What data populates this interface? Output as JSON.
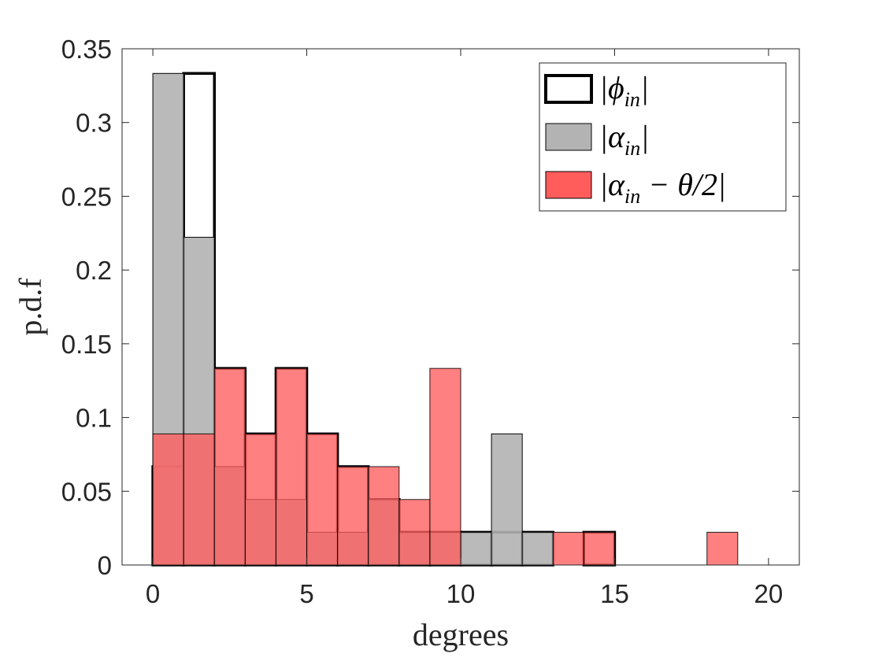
{
  "chart_data": {
    "type": "bar",
    "subtype": "histogram",
    "title": "",
    "xlabel": "degrees",
    "ylabel": "p.d.f",
    "xlim": [
      -1,
      21
    ],
    "ylim": [
      0,
      0.35
    ],
    "xticks": [
      0,
      5,
      10,
      15,
      20
    ],
    "xtick_labels": [
      "0",
      "5",
      "10",
      "15",
      "20"
    ],
    "yticks": [
      0,
      0.05,
      0.1,
      0.15,
      0.2,
      0.25,
      0.3,
      0.35
    ],
    "ytick_labels": [
      "0",
      "0.05",
      "0.1",
      "0.15",
      "0.2",
      "0.25",
      "0.3",
      "0.35"
    ],
    "legend_position": "top-right",
    "series": [
      {
        "name": "phi_in",
        "legend_main": "|ϕ",
        "legend_sub": "in",
        "legend_end": "|",
        "style": "outline",
        "color": "#000000",
        "bin_edges": [
          0,
          1,
          2,
          3,
          4,
          5,
          6,
          7,
          8,
          9,
          10,
          11,
          12,
          13,
          14,
          15,
          16,
          17,
          18,
          19,
          20
        ],
        "values": [
          0.0667,
          0.3333,
          0.1333,
          0.0889,
          0.1333,
          0.0889,
          0.0667,
          0.0444,
          0.0222,
          0.0222,
          0.0222,
          0.0222,
          0.0222,
          0,
          0.0222,
          0,
          0,
          0,
          0,
          0
        ]
      },
      {
        "name": "alpha_in",
        "legend_main": "|α",
        "legend_sub": "in",
        "legend_end": "|",
        "style": "filled",
        "color": "#b3b3b3",
        "bin_edges": [
          0,
          1,
          2,
          3,
          4,
          5,
          6,
          7,
          8,
          9,
          10,
          11,
          12,
          13
        ],
        "values": [
          0.3333,
          0.2222,
          0.0667,
          0.0444,
          0.0444,
          0.0222,
          0.0222,
          0.0444,
          0.0222,
          0.0222,
          0.0222,
          0.0889,
          0.0222
        ]
      },
      {
        "name": "alpha_in_minus_theta_half",
        "legend_main": "|α",
        "legend_sub": "in",
        "legend_end": " − θ/2|",
        "style": "filled",
        "color": "#ff5c5c",
        "bin_edges": [
          0,
          1,
          2,
          3,
          4,
          5,
          6,
          7,
          8,
          9,
          10,
          11,
          12,
          13,
          14,
          15,
          16,
          17,
          18,
          19
        ],
        "values": [
          0.0889,
          0.0889,
          0.1333,
          0.0889,
          0.1333,
          0.0889,
          0.0667,
          0.0667,
          0.0444,
          0.1333,
          0,
          0,
          0,
          0.0222,
          0.0222,
          0,
          0,
          0,
          0.0222
        ]
      }
    ]
  }
}
